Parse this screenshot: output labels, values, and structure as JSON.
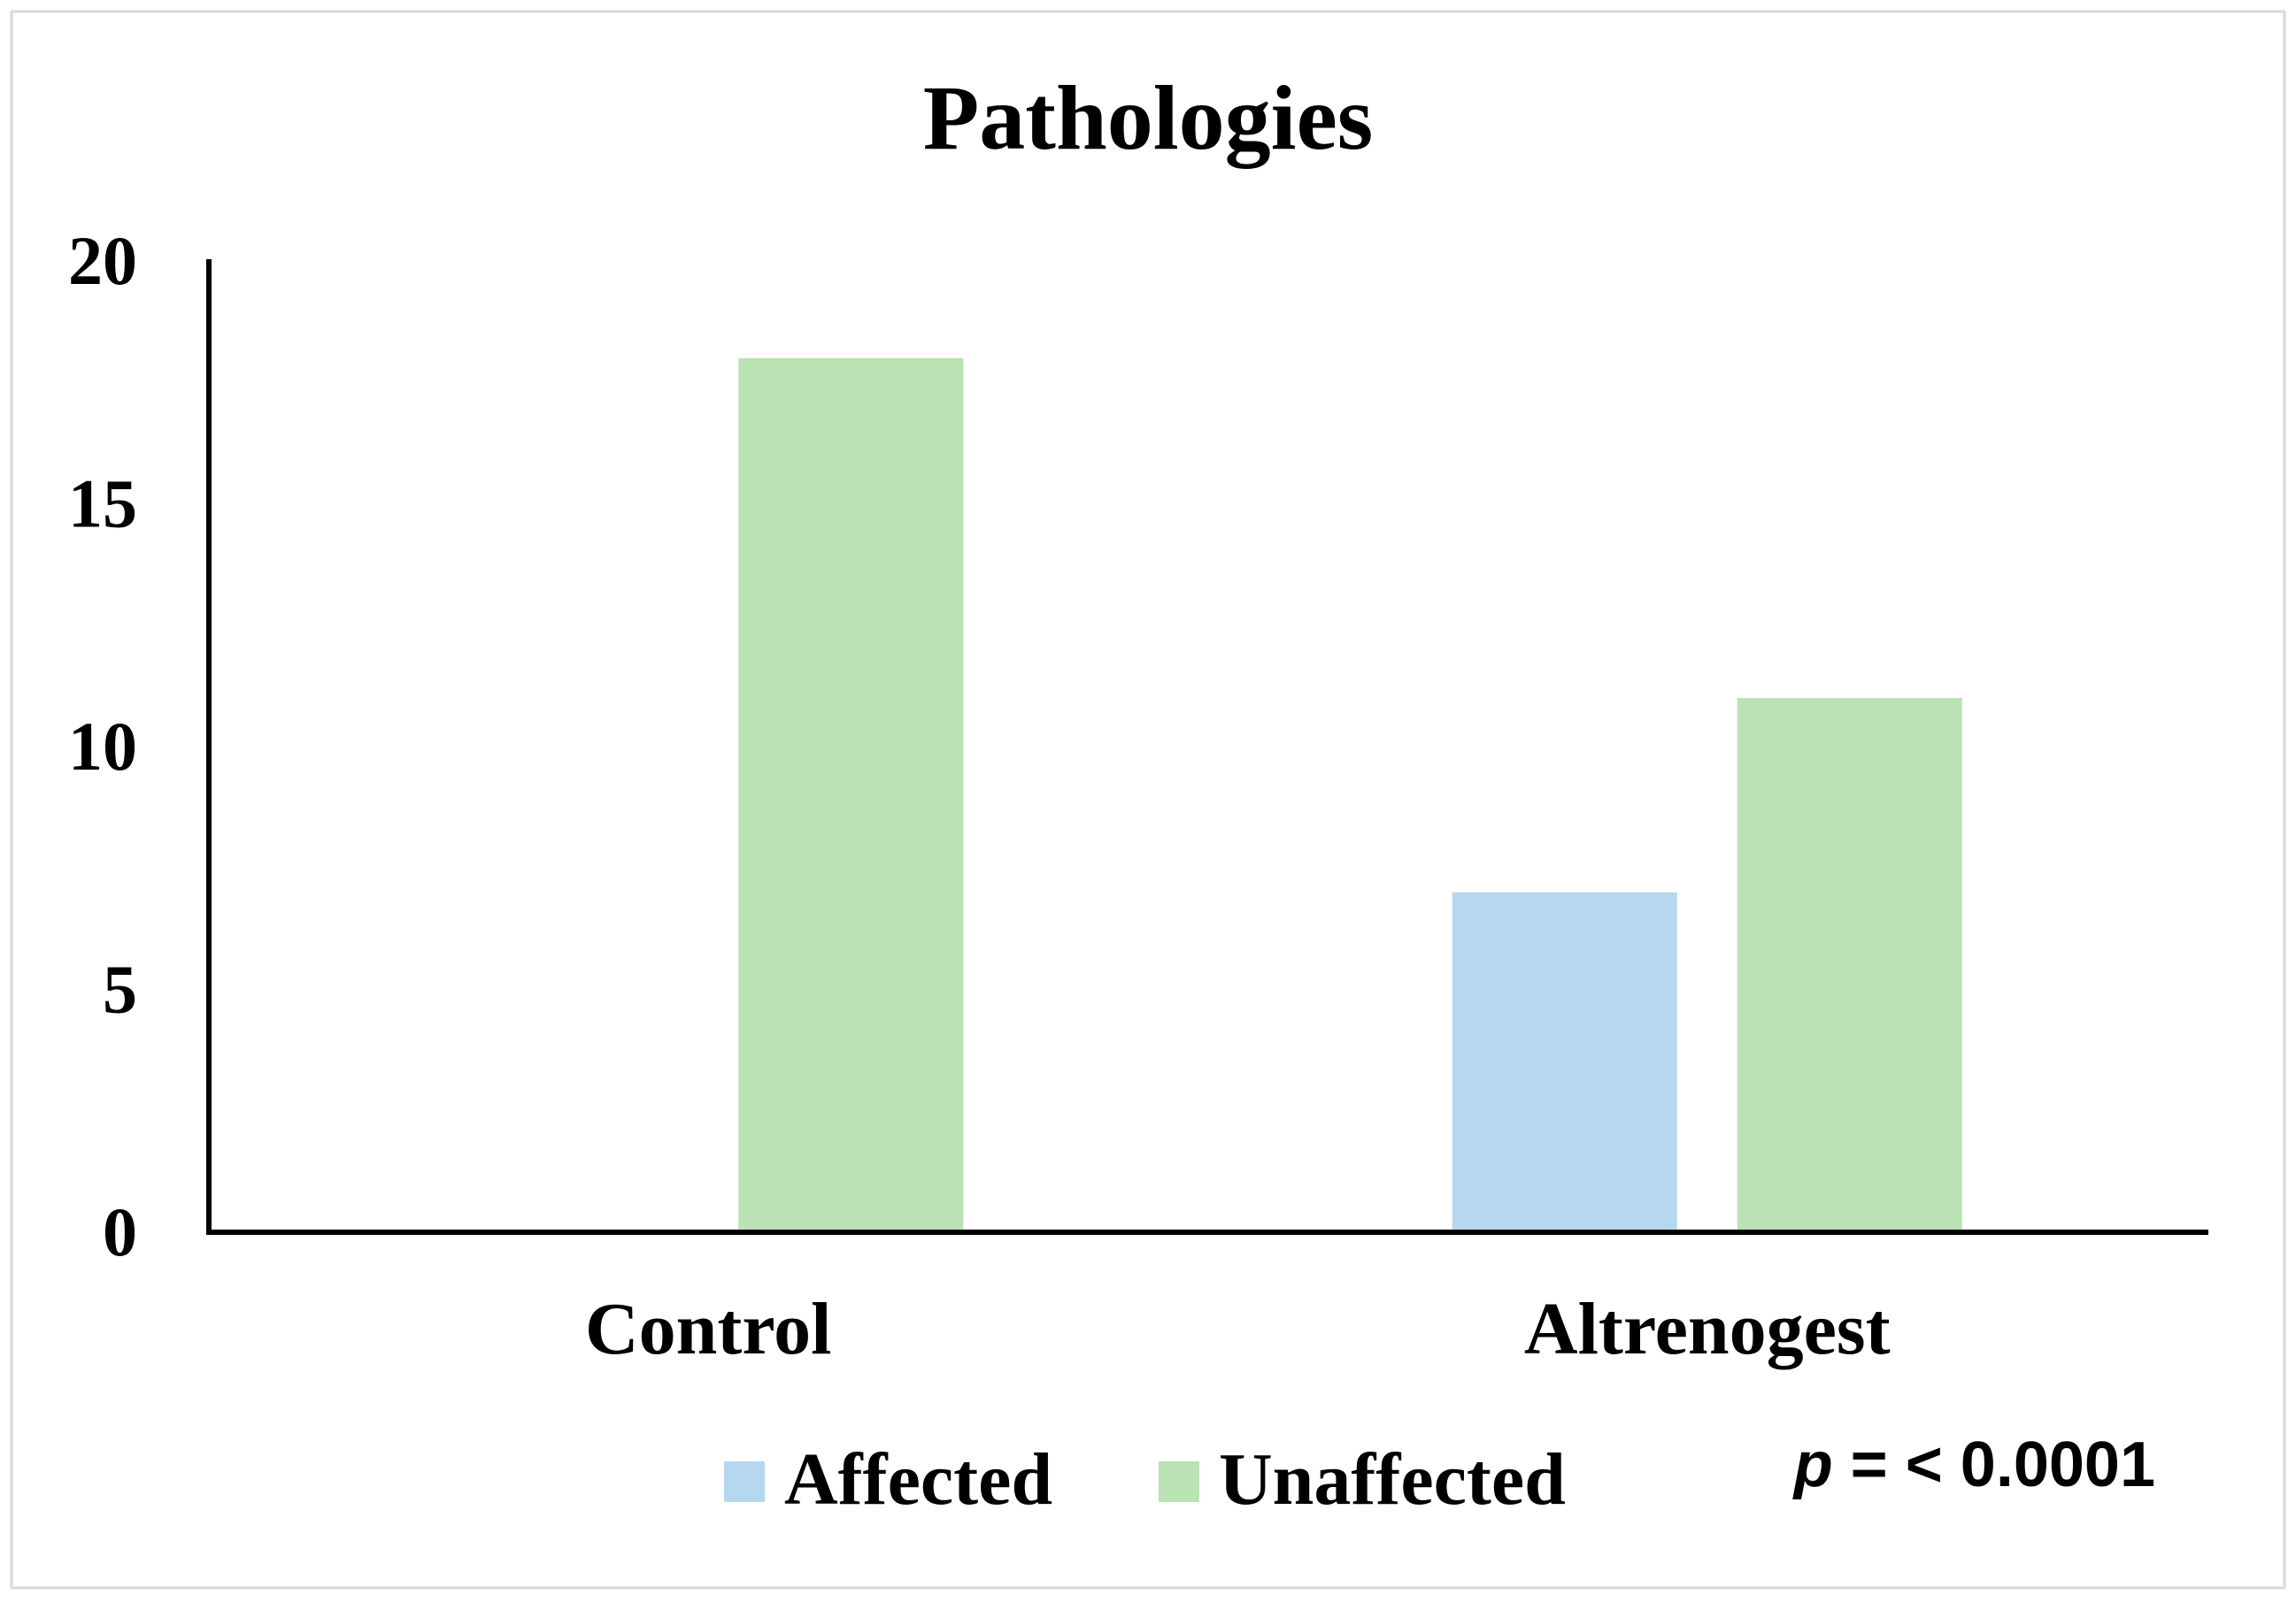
{
  "chart_data": {
    "type": "bar",
    "title": "Pathologies",
    "xlabel": "",
    "ylabel": "",
    "categories": [
      "Control",
      "Altrenogest"
    ],
    "series": [
      {
        "name": "Affected",
        "values": [
          0,
          7
        ],
        "color": "#b5d8f0"
      },
      {
        "name": "Unaffected",
        "values": [
          18,
          11
        ],
        "color": "#bae2b4"
      }
    ],
    "ylim": [
      0,
      20
    ],
    "yticks": [
      0,
      5,
      10,
      15,
      20
    ],
    "grid": false,
    "legend_placement": "bottom",
    "annotation": {
      "italic": "p",
      "text": " = < 0.0001"
    }
  }
}
